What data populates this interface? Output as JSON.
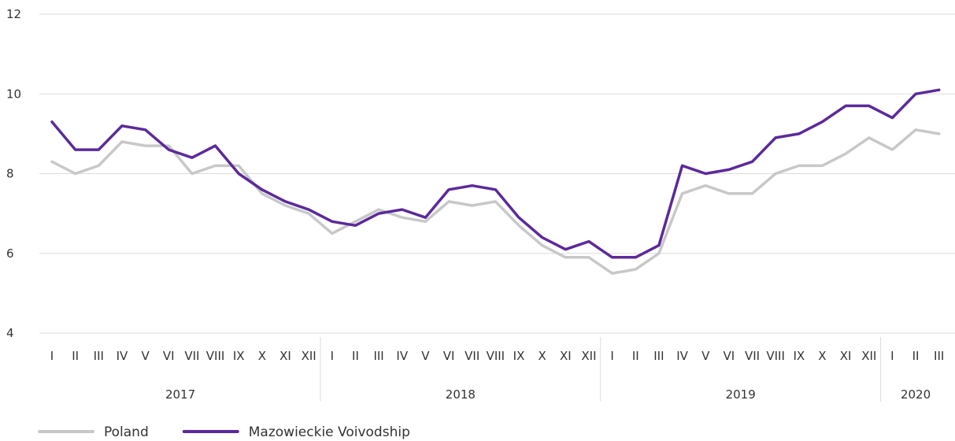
{
  "chart_data": {
    "type": "line",
    "title": "",
    "xlabel": "",
    "ylabel": "",
    "ylim": [
      4,
      12
    ],
    "yticks": [
      4,
      6,
      8,
      10,
      12
    ],
    "grid": "horizontal",
    "legend_position": "bottom-left",
    "categories": [
      "I",
      "II",
      "III",
      "IV",
      "V",
      "VI",
      "VII",
      "VIII",
      "IX",
      "X",
      "XI",
      "XII",
      "I",
      "II",
      "III",
      "IV",
      "V",
      "VI",
      "VII",
      "VIII",
      "IX",
      "X",
      "XI",
      "XII",
      "I",
      "II",
      "III",
      "IV",
      "V",
      "VI",
      "VII",
      "VIII",
      "IX",
      "X",
      "XI",
      "XII",
      "I",
      "II",
      "III"
    ],
    "year_groups": [
      {
        "label": "2017",
        "count": 12
      },
      {
        "label": "2018",
        "count": 12
      },
      {
        "label": "2019",
        "count": 12
      },
      {
        "label": "2020",
        "count": 3
      }
    ],
    "series": [
      {
        "name": "Poland",
        "color": "#c8c8c8",
        "values": [
          8.3,
          8.0,
          8.2,
          8.8,
          8.7,
          8.7,
          8.0,
          8.2,
          8.2,
          7.5,
          7.2,
          7.0,
          6.5,
          6.8,
          7.1,
          6.9,
          6.8,
          7.3,
          7.2,
          7.3,
          6.7,
          6.2,
          5.9,
          5.9,
          5.5,
          5.6,
          6.0,
          7.5,
          7.7,
          7.5,
          7.5,
          8.0,
          8.2,
          8.2,
          8.5,
          8.9,
          8.6,
          9.1,
          9.0
        ]
      },
      {
        "name": "Mazowieckie Voivodship",
        "color": "#5b2a9a",
        "values": [
          9.3,
          8.6,
          8.6,
          9.2,
          9.1,
          8.6,
          8.4,
          8.7,
          8.0,
          7.6,
          7.3,
          7.1,
          6.8,
          6.7,
          7.0,
          7.1,
          6.9,
          7.6,
          7.7,
          7.6,
          6.9,
          6.4,
          6.1,
          6.3,
          5.9,
          5.9,
          6.2,
          8.2,
          8.0,
          8.1,
          8.3,
          8.9,
          9.0,
          9.3,
          9.7,
          9.7,
          9.4,
          10.0,
          10.1
        ]
      }
    ]
  }
}
